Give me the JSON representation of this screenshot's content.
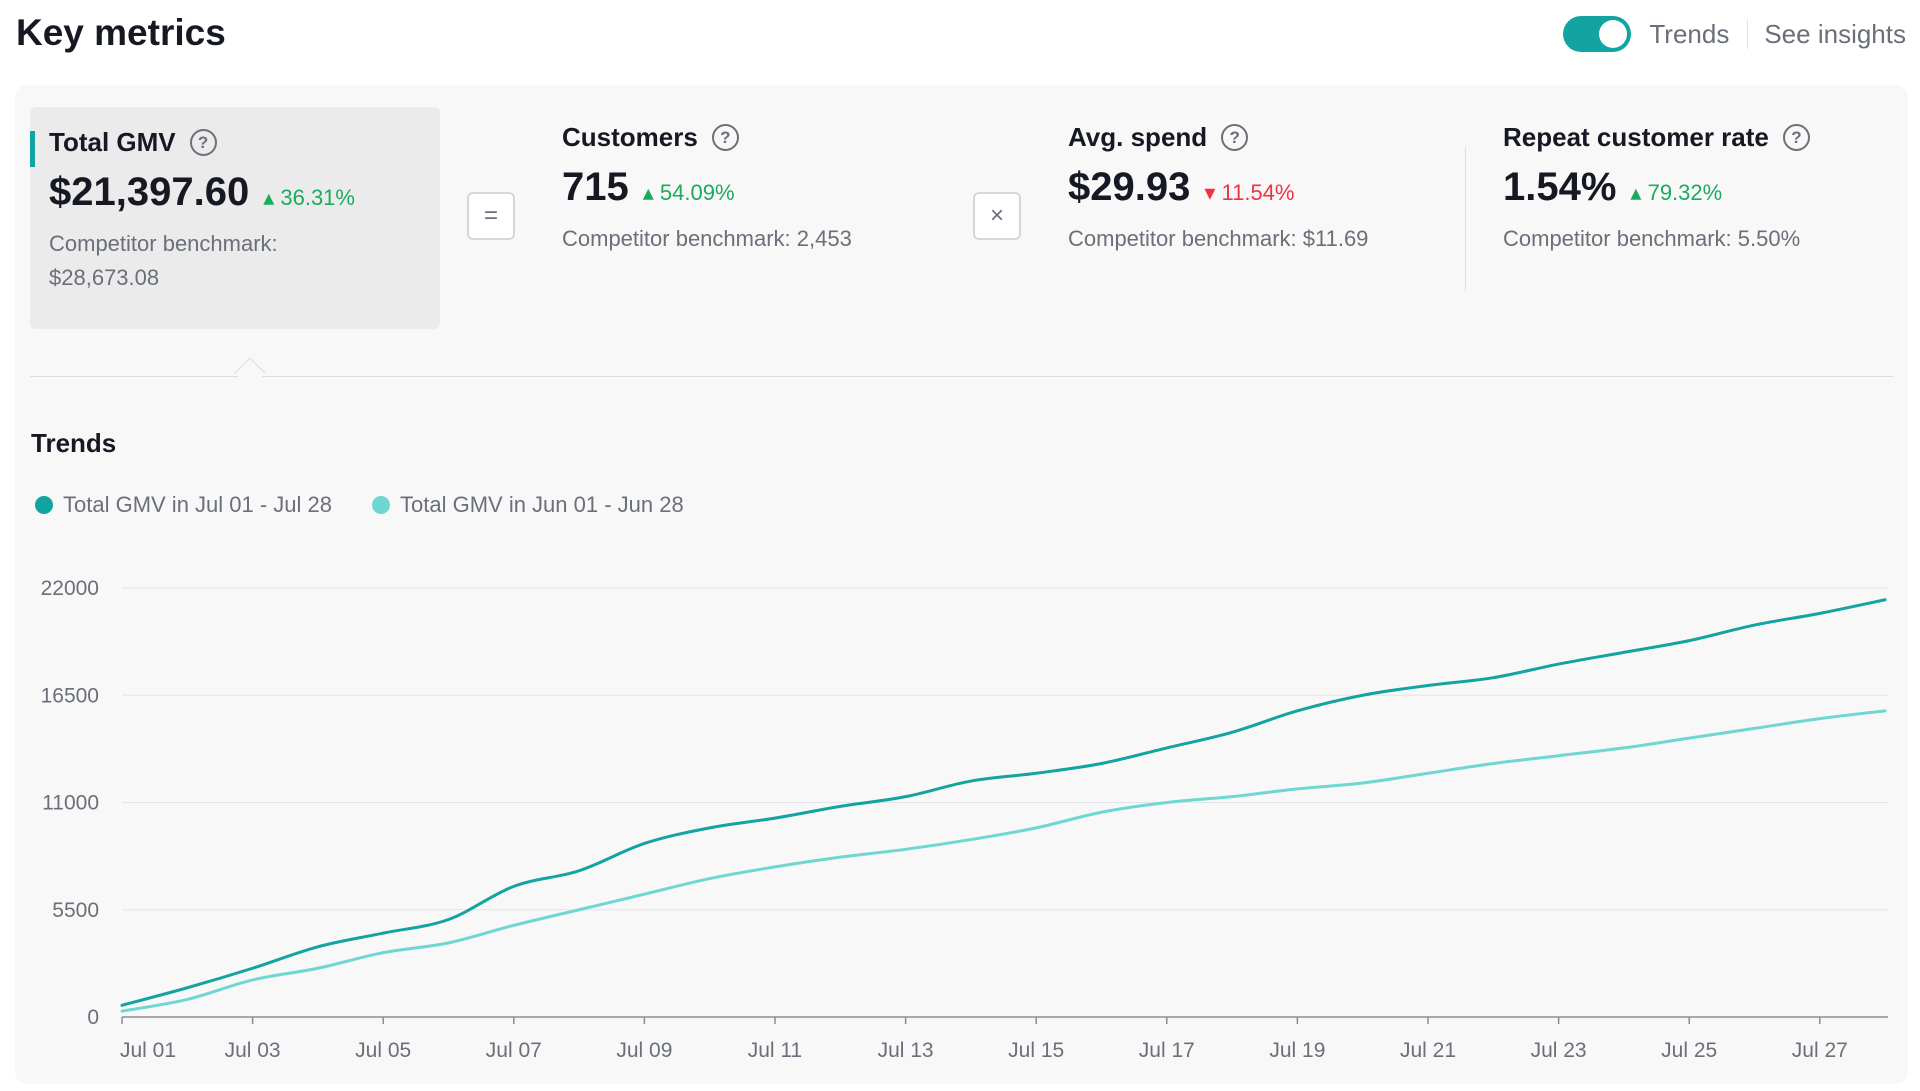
{
  "header": {
    "title": "Key metrics",
    "toggle_label": "Trends",
    "insights_label": "See insights"
  },
  "metrics": [
    {
      "title": "Total GMV",
      "value": "$21,397.60",
      "change": "36.31%",
      "direction": "up",
      "benchmark_label": "Competitor benchmark:",
      "benchmark_value": "$28,673.08"
    },
    {
      "title": "Customers",
      "value": "715",
      "change": "54.09%",
      "direction": "up",
      "benchmark": "Competitor benchmark: 2,453"
    },
    {
      "title": "Avg. spend",
      "value": "$29.93",
      "change": "11.54%",
      "direction": "down",
      "benchmark": "Competitor benchmark: $11.69"
    },
    {
      "title": "Repeat customer rate",
      "value": "1.54%",
      "change": "79.32%",
      "direction": "up",
      "benchmark": "Competitor benchmark: 5.50%"
    }
  ],
  "operators": {
    "equals": "=",
    "times": "×"
  },
  "trends": {
    "title": "Trends"
  },
  "colors": {
    "accent": "#13a3a0",
    "series_current": "#13a3a0",
    "series_previous": "#6ed7d1",
    "up": "#1aab5e",
    "down": "#ee3344"
  },
  "chart_data": {
    "type": "line",
    "x": [
      "Jul 01",
      "Jul 02",
      "Jul 03",
      "Jul 04",
      "Jul 05",
      "Jul 06",
      "Jul 07",
      "Jul 08",
      "Jul 09",
      "Jul 10",
      "Jul 11",
      "Jul 12",
      "Jul 13",
      "Jul 14",
      "Jul 15",
      "Jul 16",
      "Jul 17",
      "Jul 18",
      "Jul 19",
      "Jul 20",
      "Jul 21",
      "Jul 22",
      "Jul 23",
      "Jul 24",
      "Jul 25",
      "Jul 26",
      "Jul 27",
      "Jul 28"
    ],
    "x_tick_labels": [
      "Jul 01",
      "Jul 03",
      "Jul 05",
      "Jul 07",
      "Jul 09",
      "Jul 11",
      "Jul 13",
      "Jul 15",
      "Jul 17",
      "Jul 19",
      "Jul 21",
      "Jul 23",
      "Jul 25",
      "Jul 27"
    ],
    "y_ticks": [
      0,
      5500,
      11000,
      16500,
      22000
    ],
    "ylim": [
      0,
      22000
    ],
    "grid": true,
    "legend_position": "top-left",
    "series": [
      {
        "name": "Total GMV in Jul 01 - Jul 28",
        "color": "#13a3a0",
        "values": [
          600,
          1500,
          2500,
          3600,
          4300,
          5000,
          6700,
          7500,
          8900,
          9700,
          10200,
          10800,
          11300,
          12100,
          12500,
          13000,
          13800,
          14600,
          15700,
          16500,
          17000,
          17400,
          18100,
          18700,
          19300,
          20100,
          20700,
          21397.6
        ]
      },
      {
        "name": "Total GMV in Jun 01 - Jun 28",
        "color": "#6ed7d1",
        "values": [
          300,
          900,
          1900,
          2500,
          3300,
          3800,
          4700,
          5500,
          6300,
          7100,
          7700,
          8200,
          8600,
          9100,
          9700,
          10500,
          11000,
          11300,
          11700,
          12000,
          12500,
          13000,
          13400,
          13800,
          14300,
          14800,
          15300,
          15700
        ]
      }
    ]
  }
}
